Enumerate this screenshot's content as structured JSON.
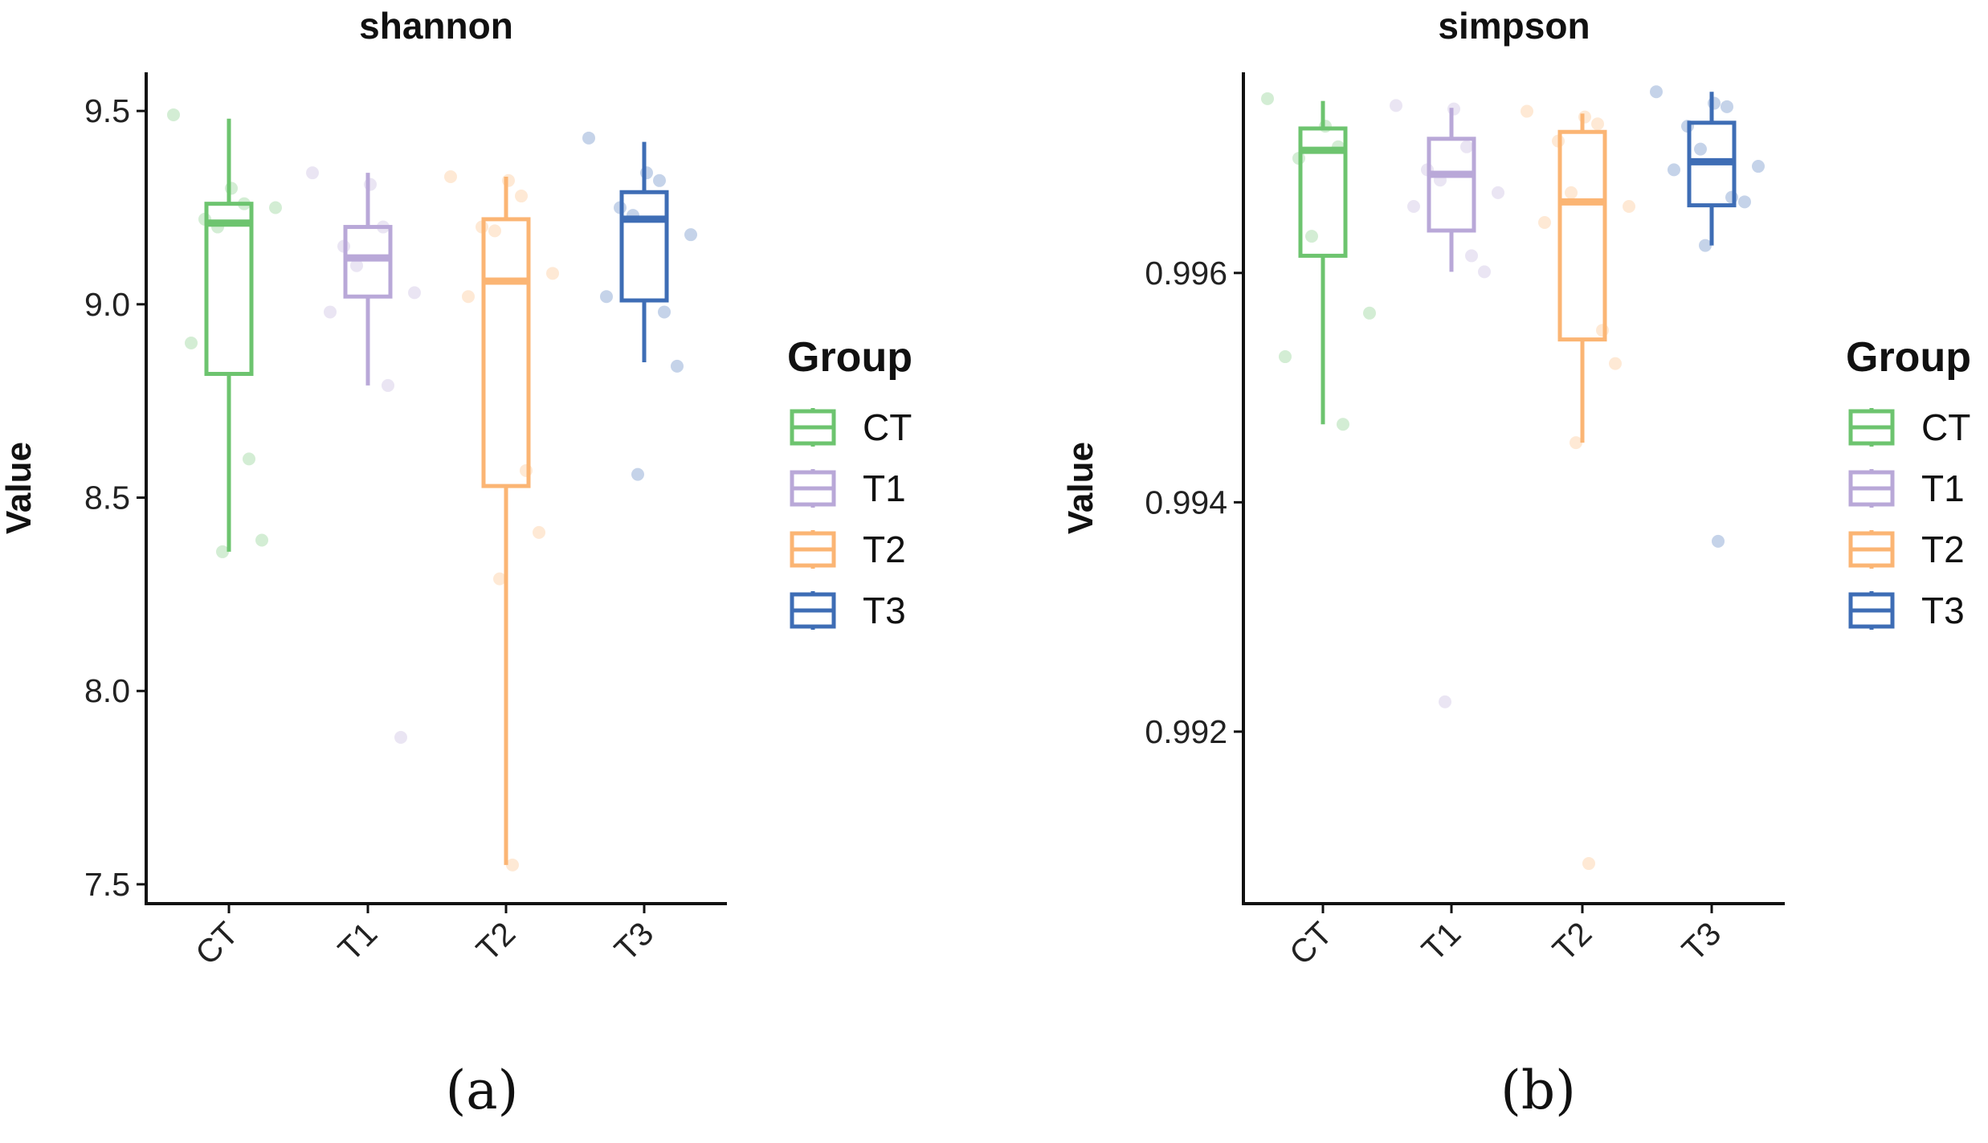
{
  "chart_data": [
    {
      "type": "box",
      "title": "shannon",
      "ylabel": "Value",
      "xlabel": "",
      "ylim": [
        7.45,
        9.6
      ],
      "yticks": [
        "7.5",
        "8.0",
        "8.5",
        "9.0",
        "9.5"
      ],
      "ytick_values": [
        7.5,
        8.0,
        8.5,
        9.0,
        9.5
      ],
      "categories": [
        "CT",
        "T1",
        "T2",
        "T3"
      ],
      "boxes": [
        {
          "group": "CT",
          "min": 8.36,
          "q1": 8.82,
          "median": 9.21,
          "q3": 9.26,
          "max": 9.48,
          "points": [
            9.49,
            9.3,
            9.26,
            9.22,
            9.2,
            9.25,
            8.9,
            8.6,
            8.39,
            8.36
          ]
        },
        {
          "group": "T1",
          "min": 8.79,
          "q1": 9.02,
          "median": 9.12,
          "q3": 9.2,
          "max": 9.34,
          "points": [
            9.34,
            9.31,
            9.2,
            9.15,
            9.1,
            9.03,
            8.98,
            8.79,
            7.88
          ]
        },
        {
          "group": "T2",
          "min": 7.55,
          "q1": 8.53,
          "median": 9.06,
          "q3": 9.22,
          "max": 9.33,
          "points": [
            9.33,
            9.32,
            9.28,
            9.2,
            9.19,
            9.08,
            9.02,
            8.57,
            8.41,
            8.29,
            7.55
          ]
        },
        {
          "group": "T3",
          "min": 8.85,
          "q1": 9.01,
          "median": 9.22,
          "q3": 9.29,
          "max": 9.42,
          "points": [
            9.43,
            9.34,
            9.32,
            9.25,
            9.23,
            9.18,
            9.02,
            8.98,
            8.84,
            8.56
          ]
        }
      ],
      "legend": {
        "title": "Group",
        "position": "right"
      },
      "caption": "(a)"
    },
    {
      "type": "box",
      "title": "simpson",
      "ylabel": "Value",
      "xlabel": "",
      "ylim": [
        0.9905,
        0.99775
      ],
      "yticks": [
        "0.992",
        "0.994",
        "0.996"
      ],
      "ytick_values": [
        0.992,
        0.994,
        0.996
      ],
      "categories": [
        "CT",
        "T1",
        "T2",
        "T3"
      ],
      "boxes": [
        {
          "group": "CT",
          "min": 0.99468,
          "q1": 0.99615,
          "median": 0.99707,
          "q3": 0.99726,
          "max": 0.9975,
          "points": [
            0.99752,
            0.99728,
            0.9971,
            0.997,
            0.99632,
            0.99565,
            0.99527,
            0.99468
          ]
        },
        {
          "group": "T1",
          "min": 0.99601,
          "q1": 0.99637,
          "median": 0.99686,
          "q3": 0.99717,
          "max": 0.99744,
          "points": [
            0.99746,
            0.99743,
            0.9971,
            0.9969,
            0.99681,
            0.9967,
            0.99658,
            0.99615,
            0.99601,
            0.99226
          ]
        },
        {
          "group": "T2",
          "min": 0.99452,
          "q1": 0.99542,
          "median": 0.99662,
          "q3": 0.99723,
          "max": 0.99739,
          "points": [
            0.99741,
            0.99736,
            0.9973,
            0.99715,
            0.9967,
            0.99658,
            0.99644,
            0.9955,
            0.99521,
            0.99452,
            0.99085
          ]
        },
        {
          "group": "T3",
          "min": 0.99624,
          "q1": 0.99659,
          "median": 0.99697,
          "q3": 0.99731,
          "max": 0.99758,
          "points": [
            0.99758,
            0.99748,
            0.99745,
            0.99728,
            0.99708,
            0.99693,
            0.9969,
            0.99666,
            0.99662,
            0.99624,
            0.99366
          ]
        }
      ],
      "legend": {
        "title": "Group",
        "position": "right"
      },
      "caption": "(b)"
    }
  ],
  "groups": [
    {
      "name": "CT",
      "color": "#6dc46f"
    },
    {
      "name": "T1",
      "color": "#b9a8d8"
    },
    {
      "name": "T2",
      "color": "#fbb574"
    },
    {
      "name": "T3",
      "color": "#3e6db5"
    }
  ]
}
